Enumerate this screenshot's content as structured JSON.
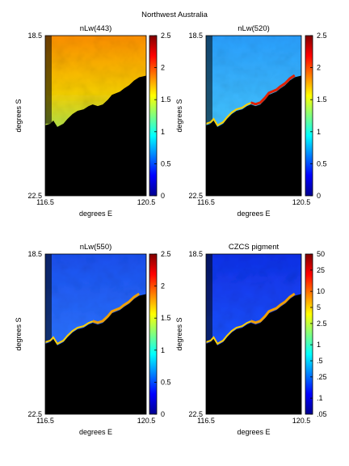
{
  "figure_title": "Northwest Australia",
  "chart_data": [
    {
      "type": "heatmap",
      "title": "nLw(443)",
      "xlabel": "degrees E",
      "ylabel": "degrees S",
      "xlim": [
        116.5,
        120.5
      ],
      "ylim": [
        18.5,
        22.5
      ],
      "xticks": [
        "116.5",
        "120.5"
      ],
      "yticks": [
        "18.5",
        "22.5"
      ],
      "colorbar": {
        "range": [
          0,
          2.5
        ],
        "scale": "linear",
        "ticks": [
          "0",
          "0.5",
          "1",
          "1.5",
          "2",
          "2.5"
        ]
      },
      "pattern": "high"
    },
    {
      "type": "heatmap",
      "title": "nLw(520)",
      "xlabel": "degrees E",
      "ylabel": "degrees S",
      "xlim": [
        116.5,
        120.5
      ],
      "ylim": [
        18.5,
        22.5
      ],
      "xticks": [
        "116.5",
        "120.5"
      ],
      "yticks": [
        "18.5",
        "22.5"
      ],
      "colorbar": {
        "range": [
          0,
          2.5
        ],
        "scale": "linear",
        "ticks": [
          "0",
          "0.5",
          "1",
          "1.5",
          "2",
          "2.5"
        ]
      },
      "pattern": "mid"
    },
    {
      "type": "heatmap",
      "title": "nLw(550)",
      "xlabel": "degrees E",
      "ylabel": "degrees S",
      "xlim": [
        116.5,
        120.5
      ],
      "ylim": [
        18.5,
        22.5
      ],
      "xticks": [
        "116.5",
        "120.5"
      ],
      "yticks": [
        "18.5",
        "22.5"
      ],
      "colorbar": {
        "range": [
          0,
          2.5
        ],
        "scale": "linear",
        "ticks": [
          "0",
          "0.5",
          "1",
          "1.5",
          "2",
          "2.5"
        ]
      },
      "pattern": "low"
    },
    {
      "type": "heatmap",
      "title": "CZCS pigment",
      "xlabel": "degrees E",
      "ylabel": "degrees S",
      "xlim": [
        116.5,
        120.5
      ],
      "ylim": [
        18.5,
        22.5
      ],
      "xticks": [
        "116.5",
        "120.5"
      ],
      "yticks": [
        "18.5",
        "22.5"
      ],
      "colorbar": {
        "range": [
          0.05,
          50
        ],
        "scale": "log",
        "ticks": [
          "50",
          "25",
          "10",
          "5",
          "2.5",
          "1",
          ".5",
          ".25",
          ".1",
          ".05"
        ],
        "tick_values": [
          50,
          25,
          10,
          5,
          2.5,
          1,
          0.5,
          0.25,
          0.1,
          0.05
        ]
      },
      "pattern": "pigment"
    }
  ]
}
